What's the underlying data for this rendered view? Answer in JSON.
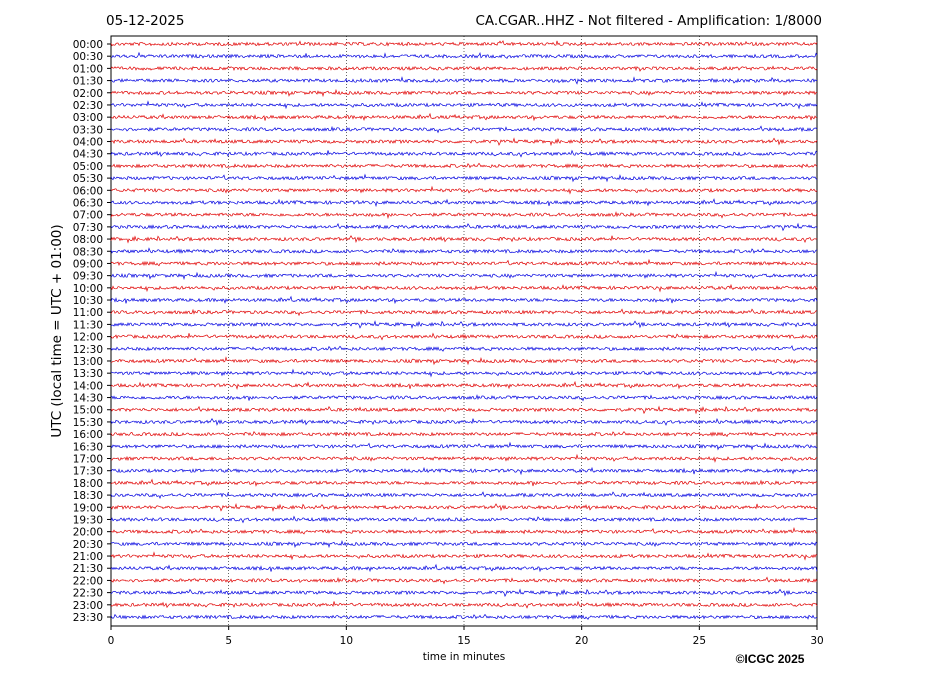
{
  "chart_data": {
    "type": "helicorder",
    "date": "05-12-2025",
    "title": "CA.CGAR..HHZ - Not filtered - Amplification: 1/8000",
    "ylabel": "UTC (local time = UTC + 01:00)",
    "xlabel": "time in minutes",
    "credit": "©ICGC 2025",
    "categories": [
      "00:00",
      "00:30",
      "01:00",
      "01:30",
      "02:00",
      "02:30",
      "03:00",
      "03:30",
      "04:00",
      "04:30",
      "05:00",
      "05:30",
      "06:00",
      "06:30",
      "07:00",
      "07:30",
      "08:00",
      "08:30",
      "09:00",
      "09:30",
      "10:00",
      "10:30",
      "11:00",
      "11:30",
      "12:00",
      "12:30",
      "13:00",
      "13:30",
      "14:00",
      "14:30",
      "15:00",
      "15:30",
      "16:00",
      "16:30",
      "17:00",
      "17:30",
      "18:00",
      "18:30",
      "19:00",
      "19:30",
      "20:00",
      "20:30",
      "21:00",
      "21:30",
      "22:00",
      "22:30",
      "23:00",
      "23:30"
    ],
    "colors": [
      "#e00000",
      "#0000e0"
    ],
    "xlim": [
      0,
      30
    ],
    "xticks": [
      0,
      5,
      10,
      15,
      20,
      25,
      30
    ],
    "grid": true
  }
}
